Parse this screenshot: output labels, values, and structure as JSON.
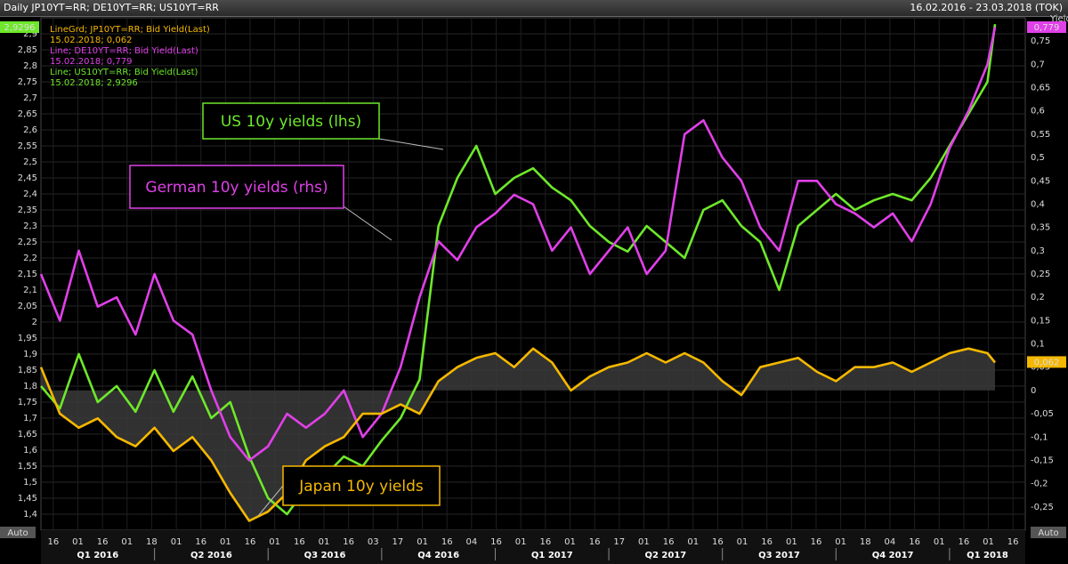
{
  "header": {
    "title": "Daily JP10YT=RR; DE10YT=RR; US10YT=RR",
    "date_range": "16.02.2016 - 23.03.2018 (TOK)"
  },
  "colors": {
    "jp": "#f5b800",
    "de": "#e040e8",
    "us": "#6ee82a",
    "bg": "#000000",
    "grid": "#2a2a2a"
  },
  "legend": [
    {
      "line1": "LineGrd; JP10YT=RR; Bid Yield(Last)",
      "line2": "15.02.2018; 0,062",
      "color": "#f5b800"
    },
    {
      "line1": "Line; DE10YT=RR; Bid Yield(Last)",
      "line2": "15.02.2018; 0,779",
      "color": "#e040e8"
    },
    {
      "line1": "Line; US10YT=RR; Bid Yield(Last)",
      "line2": "15.02.2018; 2,9296",
      "color": "#6ee82a"
    }
  ],
  "annotations": {
    "us": "US 10y yields (lhs)",
    "de": "German 10y yields (rhs)",
    "jp": "Japan 10y yields"
  },
  "badges": {
    "left": "2,9296",
    "right_de": "0,779",
    "right_jp": "0,062",
    "auto_left": "Auto",
    "auto_right": "Auto"
  },
  "y_right_title": "Yield",
  "chart_data": {
    "type": "line",
    "x_day_ticks": [
      "16",
      "01",
      "16",
      "01",
      "18",
      "01",
      "16",
      "01",
      "16",
      "01",
      "16",
      "01",
      "16",
      "03",
      "17",
      "01",
      "16",
      "04",
      "16",
      "01",
      "16",
      "01",
      "16",
      "17",
      "01",
      "16",
      "01",
      "16",
      "01",
      "16",
      "01",
      "16",
      "01",
      "18",
      "04",
      "16",
      "01",
      "16",
      "01",
      "16"
    ],
    "x_quarters": [
      "Q1 2016",
      "Q2 2016",
      "Q3 2016",
      "Q4 2016",
      "Q1 2017",
      "Q2 2017",
      "Q3 2017",
      "Q4 2017",
      "Q1 2018"
    ],
    "y_left_ticks": [
      "2,9",
      "2,85",
      "2,8",
      "2,75",
      "2,7",
      "2,65",
      "2,6",
      "2,55",
      "2,5",
      "2,45",
      "2,4",
      "2,35",
      "2,3",
      "2,25",
      "2,2",
      "2,15",
      "2,1",
      "2,05",
      "2",
      "1,95",
      "1,9",
      "1,85",
      "1,8",
      "1,75",
      "1,7",
      "1,65",
      "1,6",
      "1,55",
      "1,5",
      "1,45",
      "1,4"
    ],
    "y_right_ticks": [
      "0,75",
      "0,7",
      "0,65",
      "0,6",
      "0,55",
      "0,5",
      "0,45",
      "0,4",
      "0,35",
      "0,3",
      "0,25",
      "0,2",
      "0,15",
      "0,1",
      "0,05",
      "0",
      "-0,05",
      "-0,1",
      "-0,15",
      "-0,2",
      "-0,25"
    ],
    "y_left_range": [
      1.35,
      2.95
    ],
    "y_right_range": [
      -0.3,
      0.8
    ],
    "x_range_month": [
      0,
      26
    ],
    "series": [
      {
        "name": "US10YT=RR",
        "axis": "left",
        "color": "#6ee82a",
        "x": [
          0,
          0.5,
          1,
          1.5,
          2,
          2.5,
          3,
          3.5,
          4,
          4.5,
          5,
          5.5,
          6,
          6.5,
          7,
          7.5,
          8,
          8.5,
          9,
          9.5,
          10,
          10.5,
          11,
          11.5,
          12,
          12.5,
          13,
          13.5,
          14,
          14.5,
          15,
          15.5,
          16,
          16.5,
          17,
          17.5,
          18,
          18.5,
          19,
          19.5,
          20,
          20.5,
          21,
          21.5,
          22,
          22.5,
          23,
          23.5,
          24,
          24.5,
          25,
          25.2
        ],
        "y": [
          1.8,
          1.73,
          1.9,
          1.75,
          1.8,
          1.72,
          1.85,
          1.72,
          1.83,
          1.7,
          1.75,
          1.58,
          1.45,
          1.4,
          1.48,
          1.52,
          1.58,
          1.55,
          1.63,
          1.7,
          1.82,
          2.3,
          2.45,
          2.55,
          2.4,
          2.45,
          2.48,
          2.42,
          2.38,
          2.3,
          2.25,
          2.22,
          2.3,
          2.25,
          2.2,
          2.35,
          2.38,
          2.3,
          2.25,
          2.1,
          2.3,
          2.35,
          2.4,
          2.35,
          2.38,
          2.4,
          2.38,
          2.45,
          2.55,
          2.65,
          2.75,
          2.93
        ]
      },
      {
        "name": "DE10YT=RR",
        "axis": "right",
        "color": "#e040e8",
        "x": [
          0,
          0.5,
          1,
          1.5,
          2,
          2.5,
          3,
          3.5,
          4,
          4.5,
          5,
          5.5,
          6,
          6.5,
          7,
          7.5,
          8,
          8.5,
          9,
          9.5,
          10,
          10.5,
          11,
          11.5,
          12,
          12.5,
          13,
          13.5,
          14,
          14.5,
          15,
          15.5,
          16,
          16.5,
          17,
          17.5,
          18,
          18.5,
          19,
          19.5,
          20,
          20.5,
          21,
          21.5,
          22,
          22.5,
          23,
          23.5,
          24,
          24.5,
          25,
          25.2
        ],
        "y": [
          0.25,
          0.15,
          0.3,
          0.18,
          0.2,
          0.12,
          0.25,
          0.15,
          0.12,
          0.0,
          -0.1,
          -0.15,
          -0.12,
          -0.05,
          -0.08,
          -0.05,
          0.0,
          -0.1,
          -0.05,
          0.05,
          0.2,
          0.32,
          0.28,
          0.35,
          0.38,
          0.42,
          0.4,
          0.3,
          0.35,
          0.25,
          0.3,
          0.35,
          0.25,
          0.3,
          0.55,
          0.58,
          0.5,
          0.45,
          0.35,
          0.3,
          0.45,
          0.45,
          0.4,
          0.38,
          0.35,
          0.38,
          0.32,
          0.4,
          0.52,
          0.6,
          0.7,
          0.78
        ]
      },
      {
        "name": "JP10YT=RR",
        "axis": "right",
        "color": "#f5b800",
        "x": [
          0,
          0.5,
          1,
          1.5,
          2,
          2.5,
          3,
          3.5,
          4,
          4.5,
          5,
          5.5,
          6,
          6.5,
          7,
          7.5,
          8,
          8.5,
          9,
          9.5,
          10,
          10.5,
          11,
          11.5,
          12,
          12.5,
          13,
          13.5,
          14,
          14.5,
          15,
          15.5,
          16,
          16.5,
          17,
          17.5,
          18,
          18.5,
          19,
          19.5,
          20,
          20.5,
          21,
          21.5,
          22,
          22.5,
          23,
          23.5,
          24,
          24.5,
          25,
          25.2
        ],
        "y": [
          0.05,
          -0.05,
          -0.08,
          -0.06,
          -0.1,
          -0.12,
          -0.08,
          -0.13,
          -0.1,
          -0.15,
          -0.22,
          -0.28,
          -0.26,
          -0.22,
          -0.15,
          -0.12,
          -0.1,
          -0.05,
          -0.05,
          -0.03,
          -0.05,
          0.02,
          0.05,
          0.07,
          0.08,
          0.05,
          0.09,
          0.06,
          0.0,
          0.03,
          0.05,
          0.06,
          0.08,
          0.06,
          0.08,
          0.06,
          0.02,
          -0.01,
          0.05,
          0.06,
          0.07,
          0.04,
          0.02,
          0.05,
          0.05,
          0.06,
          0.04,
          0.06,
          0.08,
          0.09,
          0.08,
          0.06
        ]
      }
    ]
  }
}
